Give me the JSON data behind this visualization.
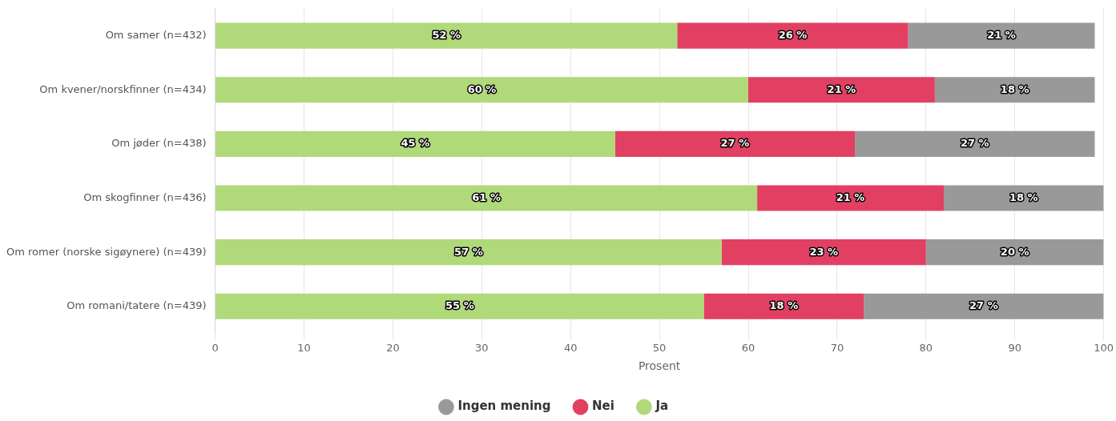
{
  "chart_data": {
    "type": "bar",
    "orientation": "horizontal",
    "stacked": true,
    "categories": [
      "Om samer (n=432)",
      "Om kvener/norskfinner (n=434)",
      "Om jøder (n=438)",
      "Om skogfinner (n=436)",
      "Om romer (norske sigøynere) (n=439)",
      "Om romani/tatere (n=439)"
    ],
    "series": [
      {
        "name": "Ja",
        "color": "#b0d97a",
        "values": [
          52,
          60,
          45,
          61,
          57,
          55
        ],
        "value_labels": [
          "52 %",
          "60 %",
          "45 %",
          "61 %",
          "57 %",
          "55 %"
        ]
      },
      {
        "name": "Nei",
        "color": "#e14062",
        "values": [
          26,
          21,
          27,
          21,
          23,
          18
        ],
        "value_labels": [
          "26 %",
          "21 %",
          "27 %",
          "21 %",
          "23 %",
          "18 %"
        ]
      },
      {
        "name": "Ingen mening",
        "color": "#999999",
        "values": [
          21,
          18,
          27,
          18,
          20,
          27
        ],
        "value_labels": [
          "21 %",
          "18 %",
          "27 %",
          "18 %",
          "20 %",
          "27 %"
        ]
      }
    ],
    "xlabel": "Prosent",
    "xlim": [
      0,
      100
    ],
    "xticks": [
      0,
      10,
      20,
      30,
      40,
      50,
      60,
      70,
      80,
      90,
      100
    ],
    "grid": "x",
    "legend": "bottom"
  }
}
